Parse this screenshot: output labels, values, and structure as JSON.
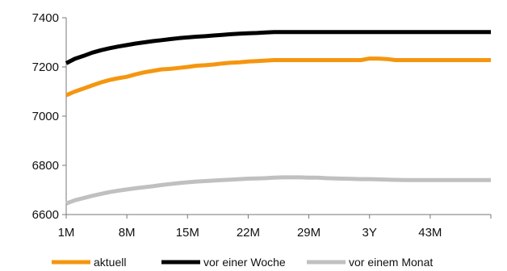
{
  "chart_data": {
    "type": "line",
    "title": "",
    "xlabel": "",
    "ylabel": "",
    "grid": false,
    "legend_position": "bottom",
    "x_tick_labels": [
      "1M",
      "8M",
      "15M",
      "22M",
      "29M",
      "3Y",
      "43M"
    ],
    "x": [
      1,
      2,
      3,
      4,
      5,
      6,
      7,
      8,
      9,
      10,
      11,
      12,
      13,
      14,
      15,
      16,
      17,
      18,
      19,
      20,
      21,
      22,
      23,
      24,
      25,
      26,
      27,
      28,
      29,
      30,
      31,
      32,
      33,
      34,
      35,
      36,
      37,
      38,
      39,
      40,
      41,
      42,
      43,
      44,
      45,
      46,
      47,
      48,
      49,
      50
    ],
    "xlim": [
      1,
      50
    ],
    "ylim": [
      6600,
      7400
    ],
    "y_ticks": [
      6600,
      6800,
      7000,
      7200,
      7400
    ],
    "series": [
      {
        "name": "aktuell",
        "color": "#f5960f",
        "values": [
          7085,
          7100,
          7112,
          7125,
          7137,
          7147,
          7154,
          7160,
          7170,
          7178,
          7184,
          7190,
          7192,
          7196,
          7200,
          7205,
          7207,
          7210,
          7214,
          7217,
          7219,
          7222,
          7224,
          7226,
          7228,
          7228,
          7228,
          7228,
          7228,
          7228,
          7228,
          7228,
          7228,
          7228,
          7228,
          7234,
          7234,
          7232,
          7228,
          7228,
          7228,
          7228,
          7228,
          7228,
          7228,
          7228,
          7228,
          7228,
          7228,
          7228
        ]
      },
      {
        "name": "vor einer Woche",
        "color": "#000000",
        "values": [
          7215,
          7233,
          7245,
          7258,
          7268,
          7276,
          7283,
          7289,
          7295,
          7300,
          7305,
          7309,
          7313,
          7317,
          7320,
          7323,
          7325,
          7328,
          7330,
          7333,
          7335,
          7337,
          7338,
          7340,
          7342,
          7342,
          7342,
          7342,
          7342,
          7342,
          7342,
          7342,
          7342,
          7342,
          7342,
          7342,
          7342,
          7342,
          7342,
          7342,
          7342,
          7342,
          7342,
          7342,
          7342,
          7342,
          7342,
          7342,
          7342,
          7342
        ]
      },
      {
        "name": "vor einem Monat",
        "color": "#c0c0c0",
        "values": [
          6645,
          6658,
          6667,
          6676,
          6684,
          6691,
          6697,
          6702,
          6707,
          6711,
          6715,
          6720,
          6724,
          6728,
          6731,
          6734,
          6736,
          6738,
          6740,
          6742,
          6744,
          6746,
          6747,
          6748,
          6750,
          6751,
          6751,
          6751,
          6750,
          6750,
          6748,
          6747,
          6746,
          6745,
          6744,
          6744,
          6743,
          6742,
          6741,
          6740,
          6740,
          6740,
          6740,
          6740,
          6740,
          6740,
          6740,
          6740,
          6740,
          6740
        ]
      }
    ]
  }
}
